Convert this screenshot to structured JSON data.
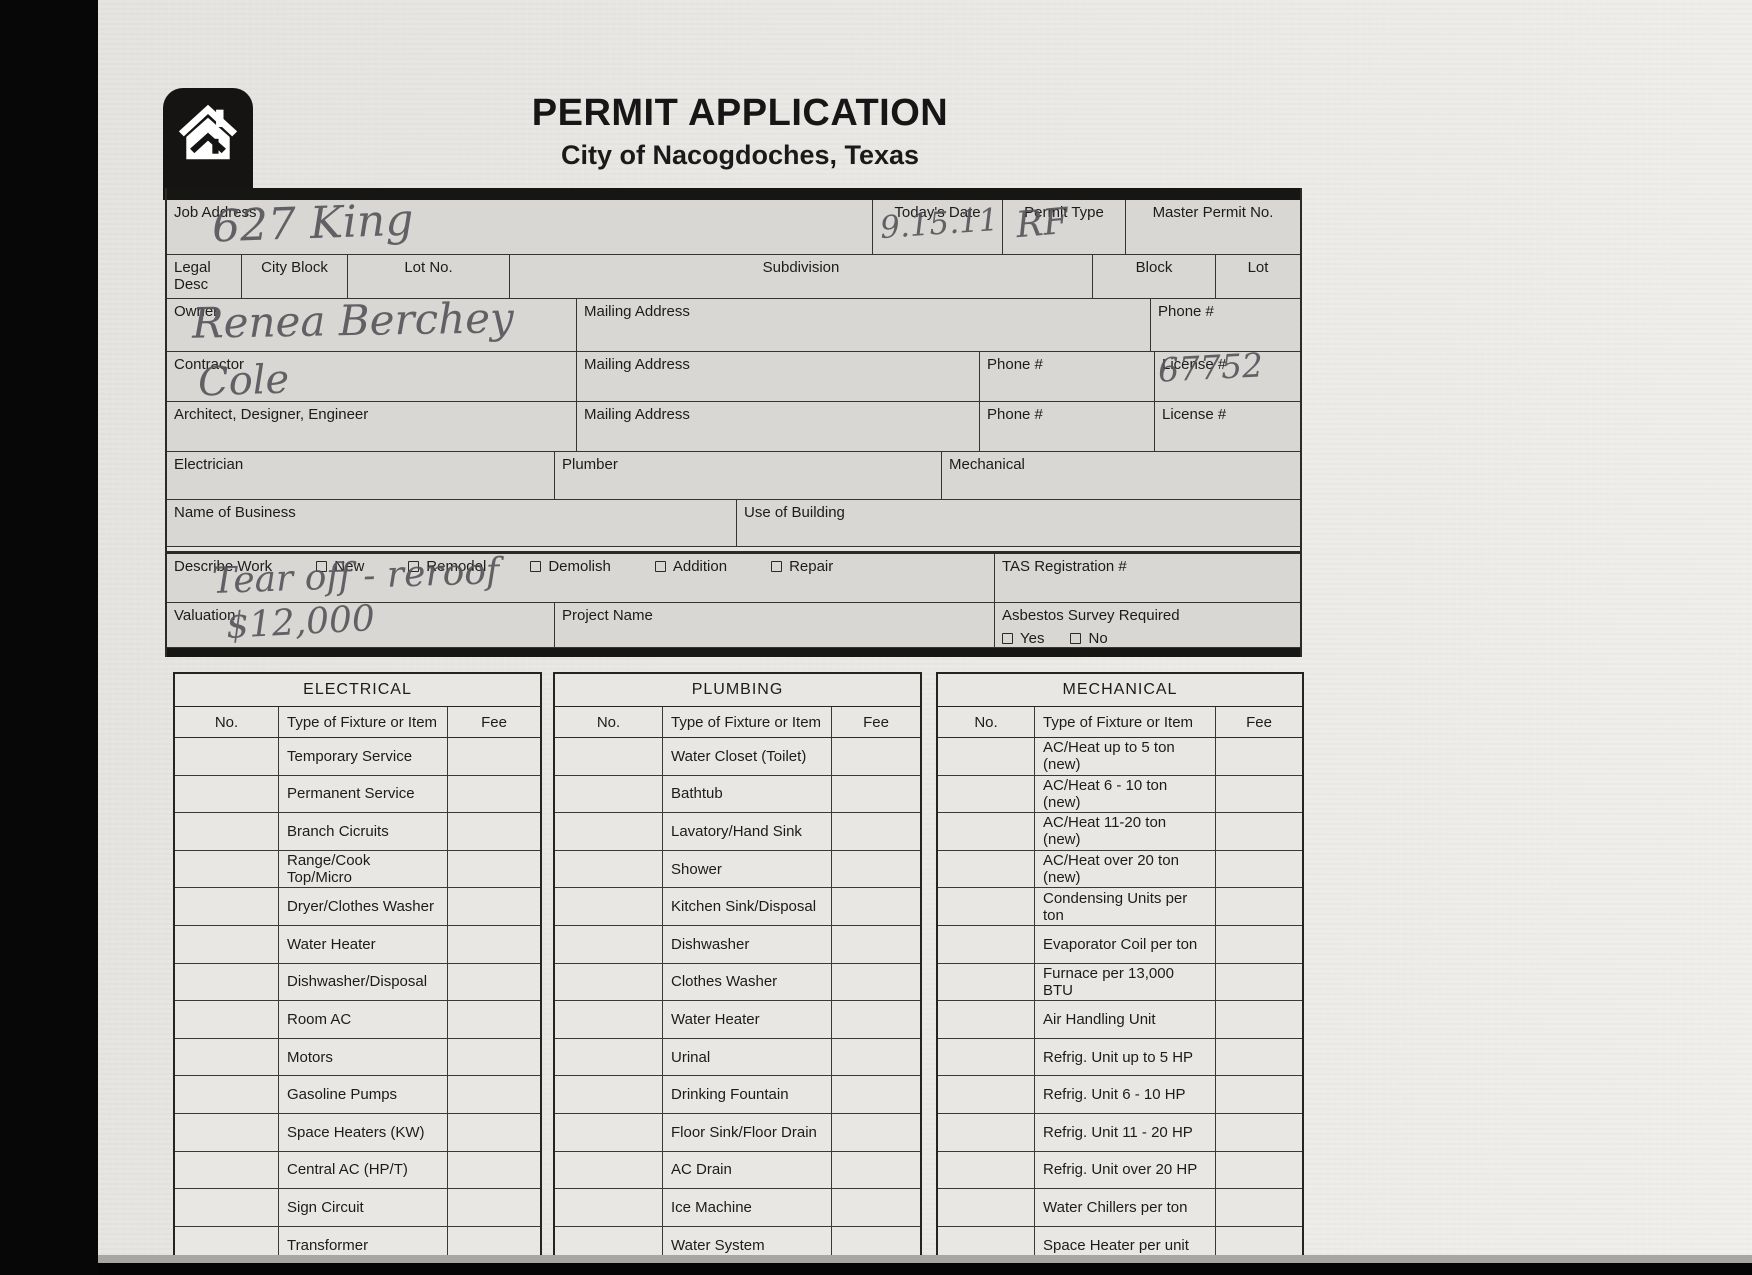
{
  "header": {
    "title": "PERMIT APPLICATION",
    "subtitle": "City of Nacogdoches, Texas"
  },
  "form": {
    "job_address_label": "Job Address",
    "job_address_value": "627 King",
    "todays_date_label": "Today's Date",
    "todays_date_value": "9.15.11",
    "permit_type_label": "Permit Type",
    "permit_type_value": "RF",
    "master_permit_label": "Master Permit No.",
    "legal_desc_label": "Legal Desc",
    "city_block_label": "City Block",
    "lot_no_label": "Lot No.",
    "subdivision_label": "Subdivision",
    "block_label": "Block",
    "lot_label": "Lot",
    "owner_label": "Owner",
    "owner_value": "Renea Berchey",
    "mailing_address_label": "Mailing Address",
    "phone_label": "Phone #",
    "contractor_label": "Contractor",
    "contractor_value": "Cole",
    "license_label": "License #",
    "contractor_license_value": "67752",
    "architect_label": "Architect, Designer, Engineer",
    "electrician_label": "Electrician",
    "plumber_label": "Plumber",
    "mechanical_label": "Mechanical",
    "name_of_business_label": "Name of Business",
    "use_of_building_label": "Use of Building",
    "describe_work_label": "Describe Work",
    "work_options": [
      "New",
      "Remodel",
      "Demolish",
      "Addition",
      "Repair"
    ],
    "describe_work_value": "Tear off - reroof",
    "tas_label": "TAS Registration #",
    "valuation_label": "Valuation",
    "valuation_value": "$12,000",
    "project_name_label": "Project Name",
    "asbestos_label": "Asbestos Survey Required",
    "asbestos_options": [
      "Yes",
      "No"
    ]
  },
  "tables": [
    {
      "title": "ELECTRICAL",
      "columns": [
        "No.",
        "Type of Fixture or Item",
        "Fee"
      ],
      "rows": [
        "Temporary Service",
        "Permanent Service",
        "Branch Cicruits",
        "Range/Cook Top/Micro",
        "Dryer/Clothes Washer",
        "Water Heater",
        "Dishwasher/Disposal",
        "Room AC",
        "Motors",
        "Gasoline Pumps",
        "Space Heaters (KW)",
        "Central AC (HP/T)",
        "Sign Circuit",
        "Transformer"
      ]
    },
    {
      "title": "PLUMBING",
      "columns": [
        "No.",
        "Type of Fixture or Item",
        "Fee"
      ],
      "rows": [
        "Water Closet (Toilet)",
        "Bathtub",
        "Lavatory/Hand Sink",
        "Shower",
        "Kitchen Sink/Disposal",
        "Dishwasher",
        "Clothes Washer",
        "Water Heater",
        "Urinal",
        "Drinking Fountain",
        "Floor Sink/Floor Drain",
        "AC Drain",
        "Ice Machine",
        "Water System"
      ]
    },
    {
      "title": "MECHANICAL",
      "columns": [
        "No.",
        "Type of Fixture or Item",
        "Fee"
      ],
      "rows": [
        "AC/Heat up to 5 ton (new)",
        "AC/Heat 6 - 10 ton (new)",
        "AC/Heat 11-20 ton (new)",
        "AC/Heat over 20 ton (new)",
        "Condensing Units per ton",
        "Evaporator Coil per ton",
        "Furnace per 13,000 BTU",
        "Air Handling Unit",
        "Refrig. Unit up to 5 HP",
        "Refrig. Unit 6 - 10 HP",
        "Refrig. Unit 11 - 20 HP",
        "Refrig. Unit over 20 HP",
        "Water Chillers per ton",
        "Space Heater per unit"
      ]
    }
  ]
}
